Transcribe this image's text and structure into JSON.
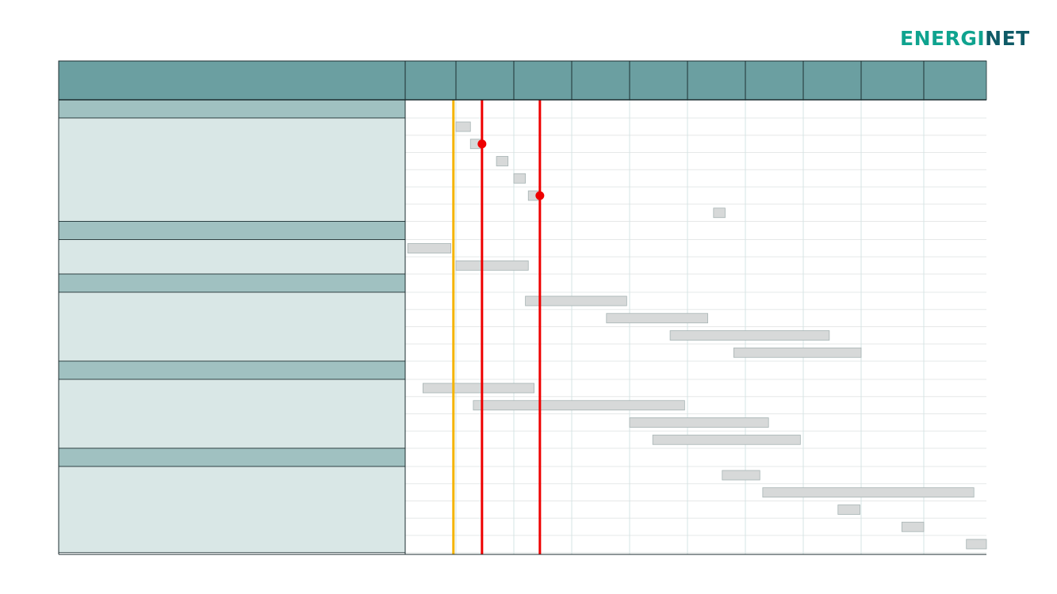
{
  "logo": {
    "text_part1": "ENERGI",
    "text_part2": "NET",
    "colors": {
      "energi": "#0fa38f",
      "net": "#0e5a66"
    }
  },
  "colors": {
    "header": "#6b9fa1",
    "section": "#a0c1c1",
    "task_panel": "#d9e7e6",
    "bar_fill": "#d7d9d9",
    "bar_stroke": "#a6b3b3",
    "vertical_grid": "#d5e4e4",
    "row_line": "#e6e8e8",
    "marker_yellow": "#f5b400",
    "marker_red": "#ee0000",
    "border": "#1c2e30"
  },
  "chart_data": {
    "type": "gantt",
    "title": "",
    "time_columns": 10,
    "time_domain": [
      0,
      10
    ],
    "column_labels": [
      "",
      "",
      "",
      "",
      "",
      "",
      "",
      "",
      "",
      ""
    ],
    "sections": [
      {
        "name": "",
        "tasks": [
          {
            "name": "",
            "start": 1.0,
            "end": 1.25
          },
          {
            "name": "",
            "start": 1.25,
            "end": 1.45
          },
          {
            "name": "",
            "start": 1.7,
            "end": 1.9
          },
          {
            "name": "",
            "start": 2.0,
            "end": 2.2
          },
          {
            "name": "",
            "start": 2.25,
            "end": 2.45
          },
          {
            "name": "",
            "start": 5.45,
            "end": 5.65
          }
        ]
      },
      {
        "name": "",
        "tasks": [
          {
            "name": "",
            "start": 0.05,
            "end": 0.9
          },
          {
            "name": "",
            "start": 1.0,
            "end": 2.25
          }
        ]
      },
      {
        "name": "",
        "tasks": [
          {
            "name": "",
            "start": 2.2,
            "end": 3.95
          },
          {
            "name": "",
            "start": 3.6,
            "end": 5.35
          },
          {
            "name": "",
            "start": 4.7,
            "end": 7.45
          },
          {
            "name": "",
            "start": 5.8,
            "end": 8.0
          }
        ]
      },
      {
        "name": "",
        "tasks": [
          {
            "name": "",
            "start": 0.35,
            "end": 2.35
          },
          {
            "name": "",
            "start": 1.3,
            "end": 4.95
          },
          {
            "name": "",
            "start": 4.0,
            "end": 6.4
          },
          {
            "name": "",
            "start": 4.4,
            "end": 6.95
          }
        ]
      },
      {
        "name": "",
        "tasks": [
          {
            "name": "",
            "start": 5.6,
            "end": 6.25
          },
          {
            "name": "",
            "start": 6.3,
            "end": 9.8
          },
          {
            "name": "",
            "start": 7.6,
            "end": 7.98
          },
          {
            "name": "",
            "start": 8.65,
            "end": 9.0
          },
          {
            "name": "",
            "start": 9.68,
            "end": 10.0
          }
        ]
      }
    ],
    "markers": [
      {
        "name": "",
        "color": "yellow",
        "x": 0.95
      },
      {
        "name": "",
        "color": "red",
        "x": 1.45,
        "dot_on_task": [
          0,
          1
        ]
      },
      {
        "name": "",
        "color": "red",
        "x": 2.45,
        "dot_on_task": [
          0,
          4
        ]
      }
    ]
  }
}
